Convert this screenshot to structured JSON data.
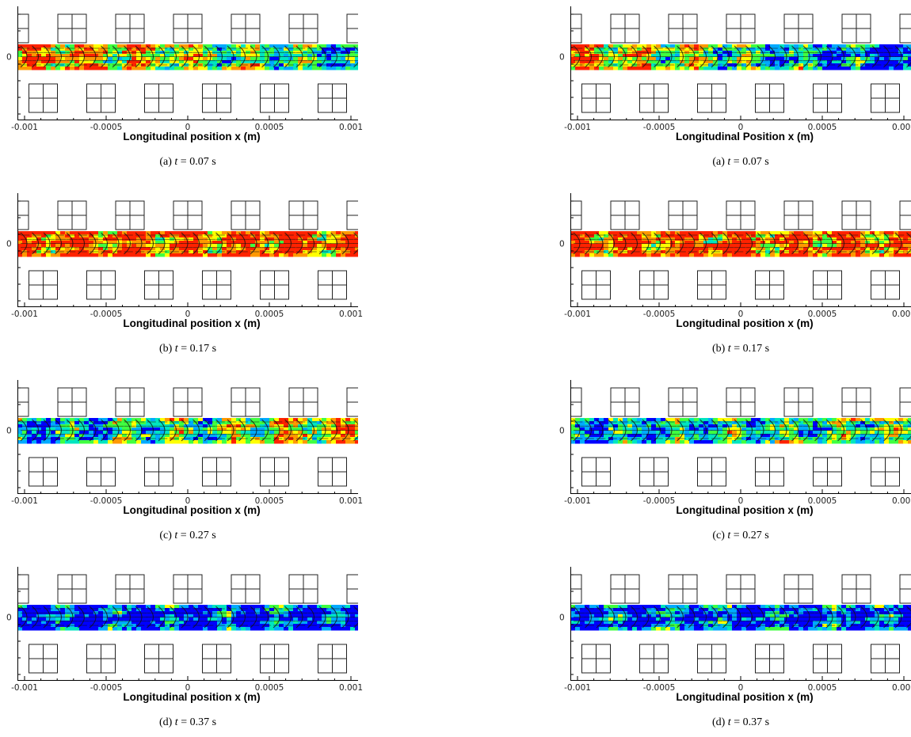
{
  "figure": {
    "ticks": {
      "x": [
        "-0.001",
        "-0.0005",
        "0",
        "0.0005",
        "0.001"
      ],
      "y": [
        "0"
      ]
    },
    "colormap": [
      "#0000ff",
      "#00aaff",
      "#00e5c0",
      "#40ff40",
      "#ffff00",
      "#ff9900",
      "#ff2200"
    ],
    "panels": [
      {
        "column": "left",
        "row": 0,
        "xlabel": "Longitudinal position x (m)",
        "caption_letter": "(a)",
        "caption_time": "= 0.07 s",
        "intensity": 0.55,
        "decay": 0.7
      },
      {
        "column": "left",
        "row": 1,
        "xlabel": "Longitudinal position x (m)",
        "caption_letter": "(b)",
        "caption_time": "= 0.17 s",
        "intensity": 0.85,
        "decay": 0.1
      },
      {
        "column": "left",
        "row": 2,
        "xlabel": "Longitudinal position x (m)",
        "caption_letter": "(c)",
        "caption_time": "= 0.27 s",
        "intensity": 0.45,
        "decay": -0.6
      },
      {
        "column": "left",
        "row": 3,
        "xlabel": "Longitudinal position x (m)",
        "caption_letter": "(d)",
        "caption_time": "= 0.37 s",
        "intensity": 0.08,
        "decay": 0.0
      },
      {
        "column": "right",
        "row": 0,
        "xlabel": "Longitudinal Position x (m)",
        "caption_letter": "(a)",
        "caption_time": "= 0.07 s",
        "intensity": 0.4,
        "decay": 0.9
      },
      {
        "column": "right",
        "row": 1,
        "xlabel": "Longitudinal position x (m)",
        "caption_letter": "(b)",
        "caption_time": "= 0.17 s",
        "intensity": 0.85,
        "decay": 0.1
      },
      {
        "column": "right",
        "row": 2,
        "xlabel": "Longitudinal position x (m)",
        "caption_letter": "(c)",
        "caption_time": "= 0.27 s",
        "intensity": 0.35,
        "decay": -0.3
      },
      {
        "column": "right",
        "row": 3,
        "xlabel": "Longitudinal position x (m)",
        "caption_letter": "(d)",
        "caption_time": "= 0.37 s",
        "intensity": 0.12,
        "decay": 0.0
      }
    ],
    "caption_variable": "t"
  }
}
